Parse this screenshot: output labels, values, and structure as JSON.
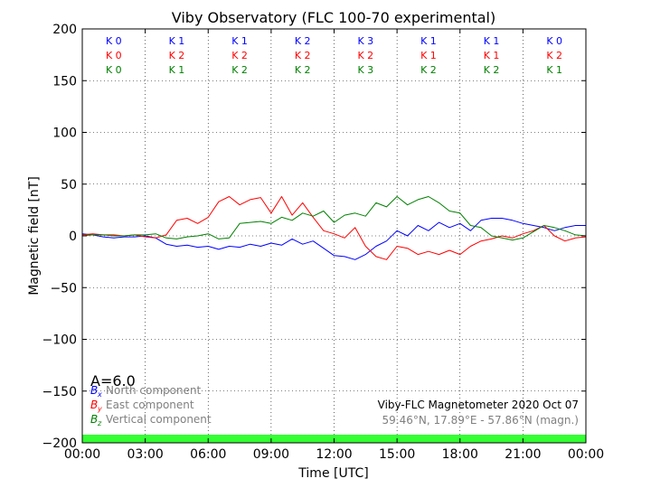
{
  "chart_data": {
    "type": "line",
    "title": "Viby Observatory (FLC 100-70 experimental)",
    "xlabel": "Time [UTC]",
    "ylabel": "Magnetic field [nT]",
    "xlim": [
      0,
      24
    ],
    "ylim": [
      -200,
      200
    ],
    "x_ticks": [
      0,
      3,
      6,
      9,
      12,
      15,
      18,
      21,
      24
    ],
    "x_tick_labels": [
      "00:00",
      "03:00",
      "06:00",
      "09:00",
      "12:00",
      "15:00",
      "18:00",
      "21:00",
      "00:00"
    ],
    "y_ticks": [
      -200,
      -150,
      -100,
      -50,
      0,
      50,
      100,
      150,
      200
    ],
    "y_tick_labels": [
      "−200",
      "−150",
      "−100",
      "−50",
      "0",
      "50",
      "100",
      "150",
      "200"
    ],
    "grid": true,
    "x": [
      0,
      0.5,
      1,
      1.5,
      2,
      2.5,
      3,
      3.5,
      4,
      4.5,
      5,
      5.5,
      6,
      6.5,
      7,
      7.5,
      8,
      8.5,
      9,
      9.5,
      10,
      10.5,
      11,
      11.5,
      12,
      12.5,
      13,
      13.5,
      14,
      14.5,
      15,
      15.5,
      16,
      16.5,
      17,
      17.5,
      18,
      18.5,
      19,
      19.5,
      20,
      20.5,
      21,
      21.5,
      22,
      22.5,
      23,
      23.5,
      24
    ],
    "series": [
      {
        "name": "North component",
        "symbol": "B",
        "subscript": "x",
        "color": "#0000ff",
        "values": [
          2,
          1,
          -1,
          -2,
          -1,
          -1,
          0,
          -2,
          -8,
          -10,
          -9,
          -11,
          -10,
          -13,
          -10,
          -11,
          -8,
          -10,
          -7,
          -9,
          -3,
          -8,
          -5,
          -12,
          -19,
          -20,
          -23,
          -18,
          -10,
          -5,
          5,
          0,
          10,
          5,
          13,
          8,
          12,
          5,
          15,
          17,
          17,
          15,
          12,
          10,
          8,
          5,
          8,
          10,
          10
        ]
      },
      {
        "name": "East component",
        "symbol": "B",
        "subscript": "y",
        "color": "#ff0000",
        "values": [
          1,
          2,
          1,
          1,
          0,
          1,
          -1,
          -2,
          1,
          15,
          17,
          12,
          18,
          33,
          38,
          30,
          35,
          37,
          22,
          38,
          20,
          32,
          18,
          5,
          2,
          -2,
          8,
          -10,
          -20,
          -23,
          -10,
          -12,
          -18,
          -15,
          -18,
          -14,
          -18,
          -10,
          -5,
          -3,
          0,
          -2,
          2,
          5,
          10,
          0,
          -5,
          -2,
          -1
        ]
      },
      {
        "name": "Vertical component",
        "symbol": "B",
        "subscript": "z",
        "color": "#008000",
        "values": [
          0,
          1,
          1,
          0,
          0,
          1,
          1,
          2,
          -2,
          -3,
          -1,
          0,
          2,
          -3,
          -2,
          12,
          13,
          14,
          12,
          18,
          15,
          22,
          19,
          24,
          13,
          20,
          22,
          19,
          32,
          28,
          38,
          30,
          35,
          38,
          32,
          24,
          22,
          10,
          8,
          0,
          -2,
          -4,
          -2,
          4,
          10,
          8,
          5,
          1,
          0
        ]
      }
    ],
    "k_index_rows": [
      {
        "color": "#0000ff",
        "labels": [
          "K 0",
          "K 1",
          "K 1",
          "K 2",
          "K 3",
          "K 1",
          "K 1",
          "K 0"
        ]
      },
      {
        "color": "#ff0000",
        "labels": [
          "K 0",
          "K 2",
          "K 2",
          "K 2",
          "K 2",
          "K 1",
          "K 1",
          "K 2"
        ]
      },
      {
        "color": "#008000",
        "labels": [
          "K 0",
          "K 1",
          "K 2",
          "K 2",
          "K 3",
          "K 2",
          "K 2",
          "K 1"
        ]
      }
    ],
    "activity_index": "A=6.0",
    "info_title": "Viby-FLC Magnetometer 2020 Oct 07",
    "info_location": "59.46°N, 17.89°E - 57.86°N (magn.)",
    "status_bar_color": "#33ff33",
    "legend_placement": "lower-left"
  }
}
